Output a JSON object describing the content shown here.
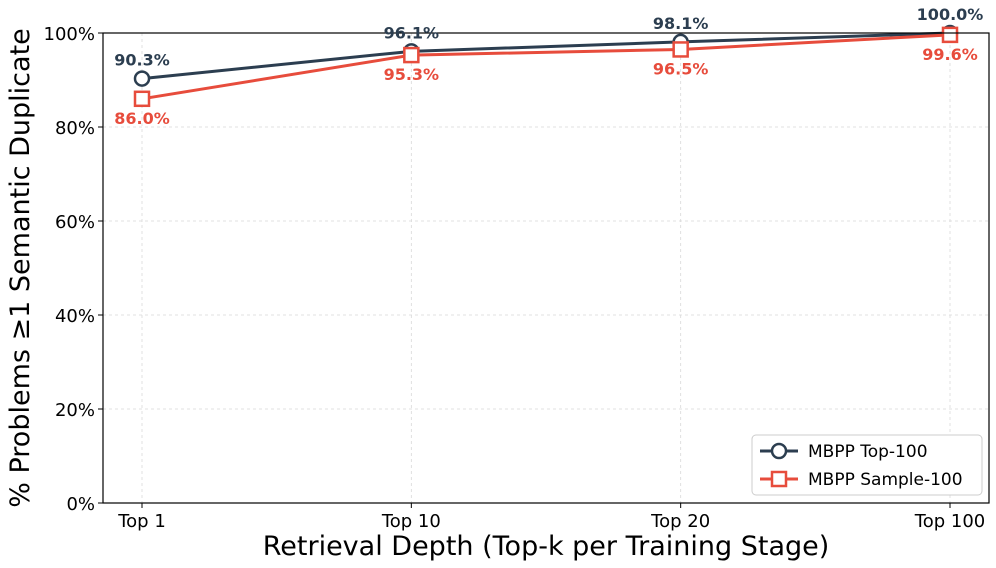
{
  "chart_data": {
    "type": "line",
    "categories": [
      "Top 1",
      "Top 10",
      "Top 20",
      "Top 100"
    ],
    "xlabel": "Retrieval Depth (Top-k per Training Stage)",
    "ylabel": "% Problems ≥1 Semantic Duplicate",
    "ylim": [
      0,
      100
    ],
    "yticks": [
      0,
      20,
      40,
      60,
      80,
      100
    ],
    "ytick_labels": [
      "0%",
      "20%",
      "40%",
      "60%",
      "80%",
      "100%"
    ],
    "grid": true,
    "legend_position": "bottom-right",
    "series": [
      {
        "name": "MBPP Top-100",
        "values": [
          90.3,
          96.1,
          98.1,
          100.0
        ],
        "labels": [
          "90.3%",
          "96.1%",
          "98.1%",
          "100.0%"
        ],
        "color": "#2c3e50",
        "marker": "circle"
      },
      {
        "name": "MBPP Sample-100",
        "values": [
          86.0,
          95.3,
          96.5,
          99.6
        ],
        "labels": [
          "86.0%",
          "95.3%",
          "96.5%",
          "99.6%"
        ],
        "color": "#e74c3c",
        "marker": "square"
      }
    ]
  }
}
